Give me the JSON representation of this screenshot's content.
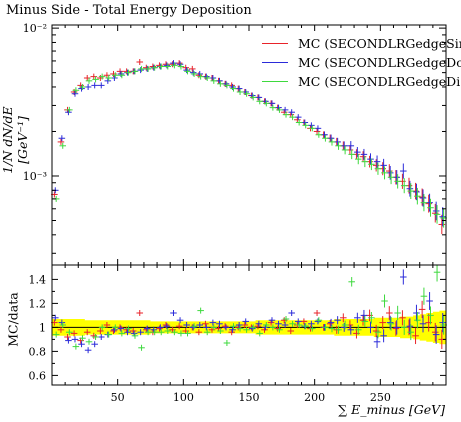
{
  "title": "Minus Side - Total Energy Deposition",
  "legend": [
    {
      "label": "MC (SECONDLRGedgeSin",
      "color": "#e8232a"
    },
    {
      "label": "MC (SECONDLRGedgeDo",
      "color": "#2b2bd9"
    },
    {
      "label": "MC (SECONDLRGedgeDi",
      "color": "#3ed93e"
    }
  ],
  "top_ylabel": "1/N dN/dE [GeV⁻¹]",
  "bottom_ylabel": "MC/data",
  "xlabel": "∑ E_minus [GeV]",
  "chart_data": [
    {
      "type": "scatter",
      "panel": "main",
      "title": "Minus Side - Total Energy Deposition",
      "ylabel": "1/N dN/dE [GeV⁻¹]",
      "yscale": "log",
      "xlim": [
        0,
        300
      ],
      "ylim": [
        0.00025,
        0.0105
      ],
      "yticks": [
        {
          "value": 0.001,
          "label": "10⁻³"
        },
        {
          "value": 0.01,
          "label": "10⁻²"
        }
      ],
      "x": [
        2.5,
        7.5,
        12.5,
        17.5,
        22.5,
        27.5,
        32.5,
        37.5,
        42.5,
        47.5,
        52.5,
        57.5,
        62.5,
        67.5,
        72.5,
        77.5,
        82.5,
        87.5,
        92.5,
        97.5,
        102.5,
        107.5,
        112.5,
        117.5,
        122.5,
        127.5,
        132.5,
        137.5,
        142.5,
        147.5,
        152.5,
        157.5,
        162.5,
        167.5,
        172.5,
        177.5,
        182.5,
        187.5,
        192.5,
        197.5,
        202.5,
        207.5,
        212.5,
        217.5,
        222.5,
        227.5,
        232.5,
        237.5,
        242.5,
        247.5,
        252.5,
        257.5,
        262.5,
        267.5,
        272.5,
        277.5,
        282.5,
        287.5,
        292.5,
        297.5
      ],
      "series": [
        {
          "name": "MC (SECONDLRGedgeSin",
          "color": "#e8232a",
          "values": [
            0.00075,
            0.0017,
            0.0028,
            0.0037,
            0.0041,
            0.0046,
            0.0047,
            0.0046,
            0.0048,
            0.0049,
            0.0051,
            0.0051,
            0.0051,
            0.0059,
            0.0054,
            0.0055,
            0.0056,
            0.0057,
            0.0057,
            0.0058,
            0.0054,
            0.0053,
            0.0048,
            0.0047,
            0.0046,
            0.0044,
            0.0042,
            0.0041,
            0.0039,
            0.0037,
            0.0035,
            0.0034,
            0.0032,
            0.0031,
            0.0029,
            0.0027,
            0.0026,
            0.0024,
            0.0023,
            0.0021,
            0.002,
            0.0019,
            0.0018,
            0.0017,
            0.0016,
            0.0015,
            0.0014,
            0.00135,
            0.00125,
            0.00118,
            0.00112,
            0.00108,
            0.00098,
            0.00092,
            0.00086,
            0.00079,
            0.00072,
            0.00065,
            0.00056,
            0.00047
          ]
        },
        {
          "name": "MC (SECONDLRGedgeDo",
          "color": "#2b2bd9",
          "values": [
            0.0008,
            0.0018,
            0.0027,
            0.0036,
            0.0039,
            0.004,
            0.0041,
            0.0041,
            0.0044,
            0.0046,
            0.0049,
            0.005,
            0.0051,
            0.0052,
            0.0053,
            0.0054,
            0.0055,
            0.0056,
            0.0058,
            0.0057,
            0.0052,
            0.005,
            0.0049,
            0.0047,
            0.0046,
            0.0044,
            0.0042,
            0.004,
            0.0039,
            0.0037,
            0.0035,
            0.0034,
            0.0032,
            0.0031,
            0.0029,
            0.0028,
            0.0027,
            0.0025,
            0.0023,
            0.0022,
            0.0021,
            0.0019,
            0.0018,
            0.0017,
            0.0016,
            0.0016,
            0.00145,
            0.0014,
            0.0013,
            0.00125,
            0.00118,
            0.00105,
            0.00098,
            0.00108,
            0.00082,
            0.00078,
            0.00071,
            0.00066,
            0.00058,
            0.00053
          ]
        },
        {
          "name": "MC (SECONDLRGedgeDi",
          "color": "#3ed93e",
          "values": [
            0.0007,
            0.0016,
            0.0028,
            0.0038,
            0.004,
            0.0044,
            0.0045,
            0.0047,
            0.0046,
            0.0048,
            0.0048,
            0.005,
            0.0051,
            0.0053,
            0.0053,
            0.0054,
            0.0055,
            0.0055,
            0.0056,
            0.0055,
            0.0051,
            0.0049,
            0.0047,
            0.0046,
            0.0044,
            0.0042,
            0.0041,
            0.0039,
            0.0037,
            0.0036,
            0.0034,
            0.0032,
            0.0031,
            0.0029,
            0.0028,
            0.0026,
            0.0025,
            0.0023,
            0.0022,
            0.0021,
            0.0019,
            0.0018,
            0.0017,
            0.0016,
            0.0015,
            0.0014,
            0.0013,
            0.00125,
            0.0012,
            0.00112,
            0.00105,
            0.00098,
            0.00092,
            0.00086,
            0.00079,
            0.00073,
            0.00066,
            0.00061,
            0.00055,
            0.00052
          ]
        }
      ]
    },
    {
      "type": "scatter",
      "panel": "ratio",
      "xlabel": "∑ E_minus [GeV]",
      "ylabel": "MC/data",
      "xlim": [
        0,
        300
      ],
      "ylim": [
        0.52,
        1.52
      ],
      "xticks": [
        50,
        100,
        150,
        200,
        250
      ],
      "yticks": [
        0.6,
        0.8,
        1,
        1.2,
        1.4
      ],
      "reference_line": 1,
      "band": {
        "color": "#ffff00",
        "lower": [
          0.93,
          0.93,
          0.93,
          0.93,
          0.93,
          0.94,
          0.94,
          0.94,
          0.94,
          0.94,
          0.94,
          0.94,
          0.94,
          0.94,
          0.94,
          0.95,
          0.95,
          0.95,
          0.95,
          0.95,
          0.95,
          0.95,
          0.95,
          0.95,
          0.95,
          0.95,
          0.95,
          0.95,
          0.95,
          0.95,
          0.95,
          0.94,
          0.94,
          0.94,
          0.94,
          0.94,
          0.94,
          0.94,
          0.94,
          0.94,
          0.94,
          0.94,
          0.94,
          0.93,
          0.93,
          0.93,
          0.93,
          0.93,
          0.93,
          0.92,
          0.92,
          0.92,
          0.92,
          0.91,
          0.91,
          0.9,
          0.89,
          0.88,
          0.87,
          0.86
        ],
        "upper": [
          1.07,
          1.07,
          1.07,
          1.07,
          1.07,
          1.06,
          1.06,
          1.06,
          1.06,
          1.06,
          1.06,
          1.06,
          1.06,
          1.06,
          1.06,
          1.05,
          1.05,
          1.05,
          1.05,
          1.05,
          1.05,
          1.05,
          1.05,
          1.05,
          1.05,
          1.05,
          1.05,
          1.05,
          1.05,
          1.05,
          1.05,
          1.06,
          1.06,
          1.06,
          1.06,
          1.06,
          1.06,
          1.06,
          1.06,
          1.06,
          1.06,
          1.06,
          1.06,
          1.07,
          1.07,
          1.07,
          1.07,
          1.07,
          1.07,
          1.08,
          1.08,
          1.08,
          1.08,
          1.09,
          1.09,
          1.1,
          1.11,
          1.12,
          1.13,
          1.14
        ]
      },
      "x": [
        2.5,
        7.5,
        12.5,
        17.5,
        22.5,
        27.5,
        32.5,
        37.5,
        42.5,
        47.5,
        52.5,
        57.5,
        62.5,
        67.5,
        72.5,
        77.5,
        82.5,
        87.5,
        92.5,
        97.5,
        102.5,
        107.5,
        112.5,
        117.5,
        122.5,
        127.5,
        132.5,
        137.5,
        142.5,
        147.5,
        152.5,
        157.5,
        162.5,
        167.5,
        172.5,
        177.5,
        182.5,
        187.5,
        192.5,
        197.5,
        202.5,
        207.5,
        212.5,
        217.5,
        222.5,
        227.5,
        232.5,
        237.5,
        242.5,
        247.5,
        252.5,
        257.5,
        262.5,
        267.5,
        272.5,
        277.5,
        282.5,
        287.5,
        292.5,
        297.5
      ],
      "series": [
        {
          "name": "MC (SECONDLRGedgeSin",
          "color": "#e8232a",
          "values": [
            1.04,
            0.98,
            0.92,
            0.95,
            0.89,
            0.96,
            0.93,
            0.97,
            1.02,
            0.97,
            1.0,
            0.98,
            0.97,
            1.12,
            0.98,
            0.96,
            0.99,
            1.02,
            0.98,
            1.01,
            0.97,
            1.0,
            0.96,
            1.03,
            0.98,
            0.99,
            1.01,
            0.96,
            1.0,
            1.02,
            1.0,
            1.01,
            0.98,
            1.04,
            0.99,
            1.06,
            0.97,
            1.02,
            1.05,
            0.99,
            1.12,
            1.0,
            1.03,
            0.98,
            1.08,
            1.02,
            0.95,
            1.06,
            1.1,
            0.97,
            1.04,
            1.12,
            0.99,
            1.08,
            1.0,
            0.93,
            1.15,
            1.04,
            0.96,
            0.9
          ]
        },
        {
          "name": "MC (SECONDLRGedgeDo",
          "color": "#2b2bd9",
          "values": [
            1.08,
            1.04,
            0.89,
            0.9,
            0.86,
            0.81,
            0.86,
            0.92,
            0.94,
            0.98,
            0.99,
            0.96,
            0.95,
            0.96,
            0.99,
            0.98,
            1.0,
            1.01,
            1.12,
            1.06,
            1.02,
            1.0,
            1.02,
            1.0,
            1.04,
            1.03,
            1.0,
            0.98,
            1.02,
            1.05,
            0.99,
            1.03,
            1.0,
            1.06,
            1.03,
            1.02,
            1.12,
            1.05,
            1.01,
            1.03,
            1.05,
            1.0,
            1.04,
            1.06,
            1.0,
            0.98,
            1.08,
            1.1,
            1.0,
            0.88,
            0.93,
            1.04,
            1.0,
            1.42,
            1.01,
            1.12,
            1.03,
            1.22,
            0.94,
            1.04
          ]
        },
        {
          "name": "MC (SECONDLRGedgeDi",
          "color": "#3ed93e",
          "values": [
            0.94,
            1.02,
            0.96,
            0.84,
            0.91,
            0.88,
            0.92,
            1.0,
            0.94,
            1.0,
            0.95,
            0.99,
            0.93,
            0.83,
            0.96,
            0.96,
            0.96,
            0.97,
            0.96,
            0.95,
            0.95,
            1.01,
            1.14,
            0.96,
            1.0,
            0.97,
            0.87,
            1.01,
            0.99,
            0.98,
            1.0,
            0.95,
            1.02,
            1.0,
            0.98,
            1.07,
            1.03,
            1.02,
            1.01,
            0.99,
            1.06,
            1.0,
            0.99,
            0.98,
            1.02,
            1.38,
            0.98,
            1.05,
            1.08,
            0.96,
            1.22,
            1.03,
            1.12,
            1.0,
            0.96,
            1.06,
            1.26,
            1.1,
            1.46,
            1.02
          ]
        }
      ]
    }
  ]
}
